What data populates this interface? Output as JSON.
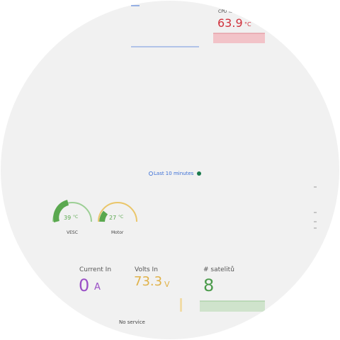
{
  "cpu": {
    "label": "CPU Tem",
    "value": "63.9",
    "unit": "°C"
  },
  "time_range": "Last 10 minutes",
  "gauges": [
    {
      "value": "39",
      "unit": "°C",
      "label": "VESC"
    },
    {
      "value": "27",
      "unit": "°C",
      "label": "Motor"
    }
  ],
  "stats": [
    {
      "label": "Current In",
      "value": "0",
      "unit": "A"
    },
    {
      "label": "Volts In",
      "value": "73.3",
      "unit": "V"
    },
    {
      "label": "# satelitů",
      "value": "8"
    }
  ],
  "status": "No service"
}
